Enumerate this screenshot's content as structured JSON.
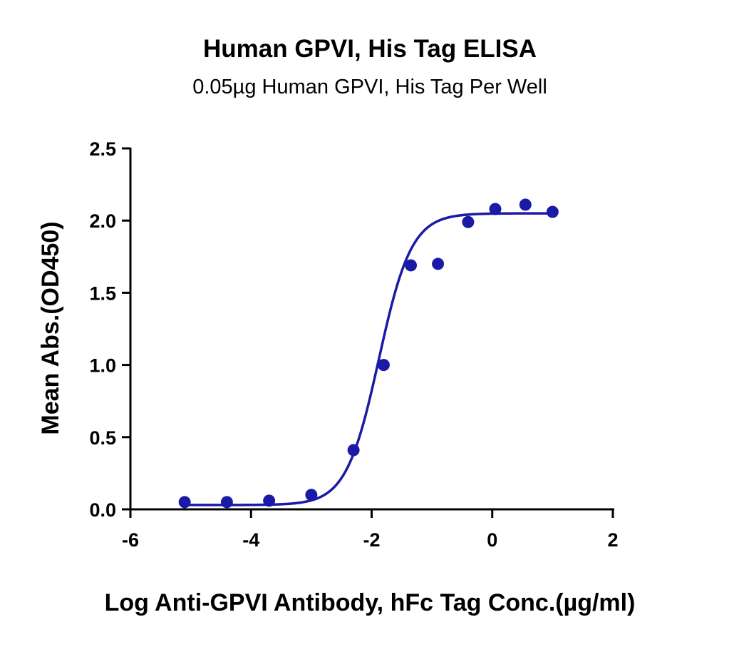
{
  "chart_data": {
    "type": "scatter",
    "title": "Human GPVI, His Tag ELISA",
    "subtitle": "0.05µg Human GPVI, His Tag Per Well",
    "xlabel": "Log Anti-GPVI Antibody, hFc Tag Conc.(µg/ml)",
    "ylabel": "Mean Abs.(OD450)",
    "xlim": [
      -6,
      2
    ],
    "ylim": [
      0,
      2.5
    ],
    "x_ticks": [
      "-6",
      "-4",
      "-2",
      "0",
      "2"
    ],
    "y_ticks": [
      "0.0",
      "0.5",
      "1.0",
      "1.5",
      "2.0",
      "2.5"
    ],
    "grid": false,
    "series": [
      {
        "points": [
          {
            "x": -5.1,
            "y": 0.05
          },
          {
            "x": -4.4,
            "y": 0.05
          },
          {
            "x": -3.7,
            "y": 0.06
          },
          {
            "x": -3.0,
            "y": 0.1
          },
          {
            "x": -2.3,
            "y": 0.41
          },
          {
            "x": -1.8,
            "y": 1.0
          },
          {
            "x": -1.35,
            "y": 1.69
          },
          {
            "x": -0.9,
            "y": 1.7
          },
          {
            "x": -0.4,
            "y": 1.99
          },
          {
            "x": 0.05,
            "y": 2.08
          },
          {
            "x": 0.55,
            "y": 2.11
          },
          {
            "x": 1.0,
            "y": 2.06
          }
        ],
        "fit": {
          "model": "4PL",
          "bottom": 0.03,
          "top": 2.05,
          "logEC50": -1.88,
          "hill": 1.6
        }
      }
    ],
    "colors": {
      "series": "#1a1aa6",
      "axis": "#000000"
    }
  }
}
